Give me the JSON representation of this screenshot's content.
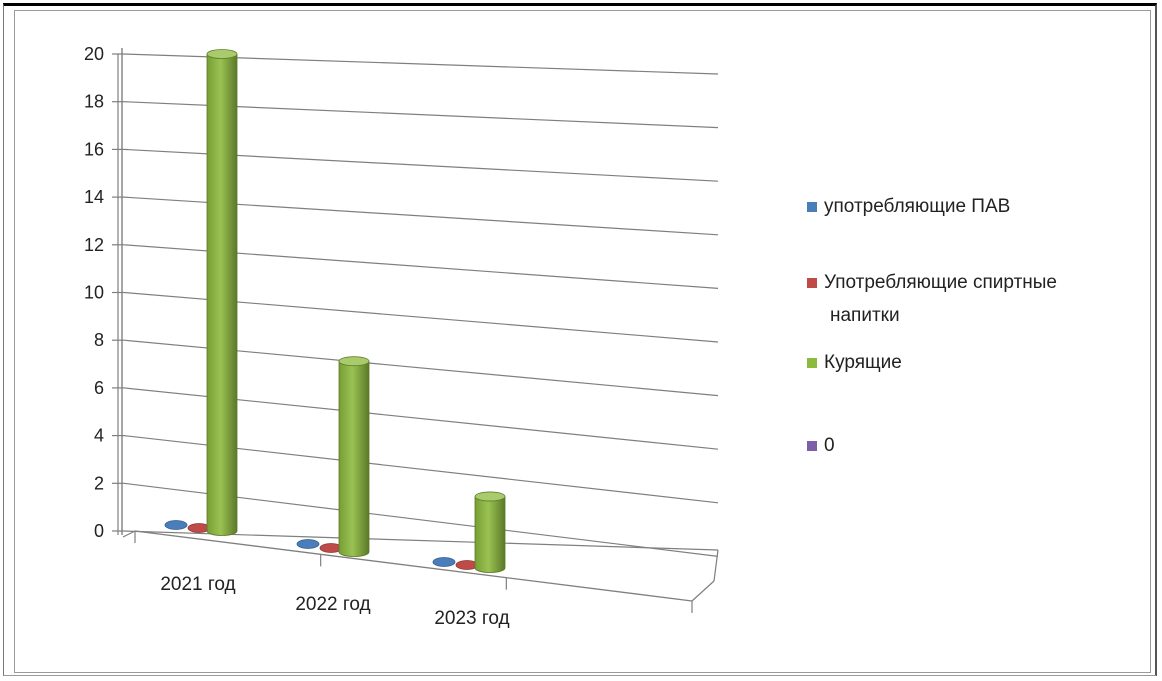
{
  "chart_data": {
    "type": "bar",
    "categories": [
      "2021 год",
      "2022 год",
      "2023 год"
    ],
    "series": [
      {
        "name": "употребляющие ПАВ",
        "values": [
          0,
          0,
          0
        ],
        "color": "#4a7ebb"
      },
      {
        "name": "Употребляющие спиртные напитки",
        "values": [
          0,
          0,
          0
        ],
        "color": "#be4b48"
      },
      {
        "name": "Курящие",
        "values": [
          20,
          8,
          3
        ],
        "color": "#8cba3c"
      },
      {
        "name": "0",
        "values": [
          0,
          0,
          0
        ],
        "color": "#7d5ea8"
      }
    ],
    "ylim": [
      0,
      20
    ],
    "yticks": [
      "0",
      "2",
      "4",
      "6",
      "8",
      "10",
      "12",
      "14",
      "16",
      "18",
      "20"
    ],
    "legend_position": "right",
    "grid": true,
    "style": "3d-cylinder"
  }
}
